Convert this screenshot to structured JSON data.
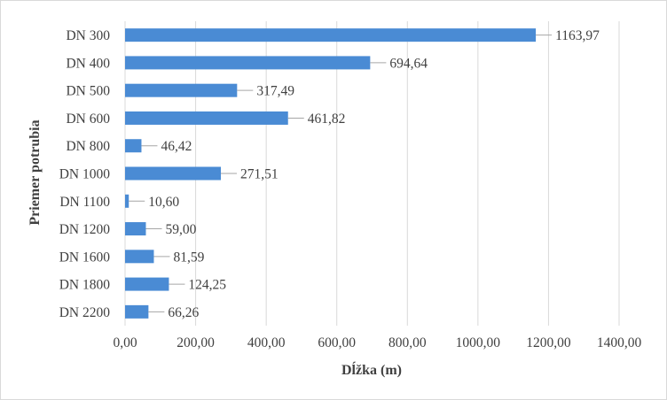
{
  "chart_data": {
    "type": "bar",
    "orientation": "horizontal",
    "categories": [
      "DN  300",
      "DN  400",
      "DN  500",
      "DN  600",
      "DN  800",
      "DN 1000",
      "DN 1100",
      "DN 1200",
      "DN 1600",
      "DN 1800",
      "DN 2200"
    ],
    "values": [
      1163.97,
      694.64,
      317.49,
      461.82,
      46.42,
      271.51,
      10.6,
      59.0,
      81.59,
      124.25,
      66.26
    ],
    "value_labels": [
      "1163,97",
      "694,64",
      "317,49",
      "461,82",
      "46,42",
      "271,51",
      "10,60",
      "59,00",
      "81,59",
      "124,25",
      "66,26"
    ],
    "xlabel": "Dĺžka (m)",
    "ylabel": "Priemer potrubia",
    "xlim": [
      0,
      1400
    ],
    "xticks": [
      0,
      200,
      400,
      600,
      800,
      1000,
      1200,
      1400
    ],
    "xtick_labels": [
      "0,00",
      "200,00",
      "400,00",
      "600,00",
      "800,00",
      "1000,00",
      "1200,00",
      "1400,00"
    ],
    "grid": "vertical",
    "bar_color": "#4a8bd4",
    "leader_color": "#a6a6a6"
  }
}
